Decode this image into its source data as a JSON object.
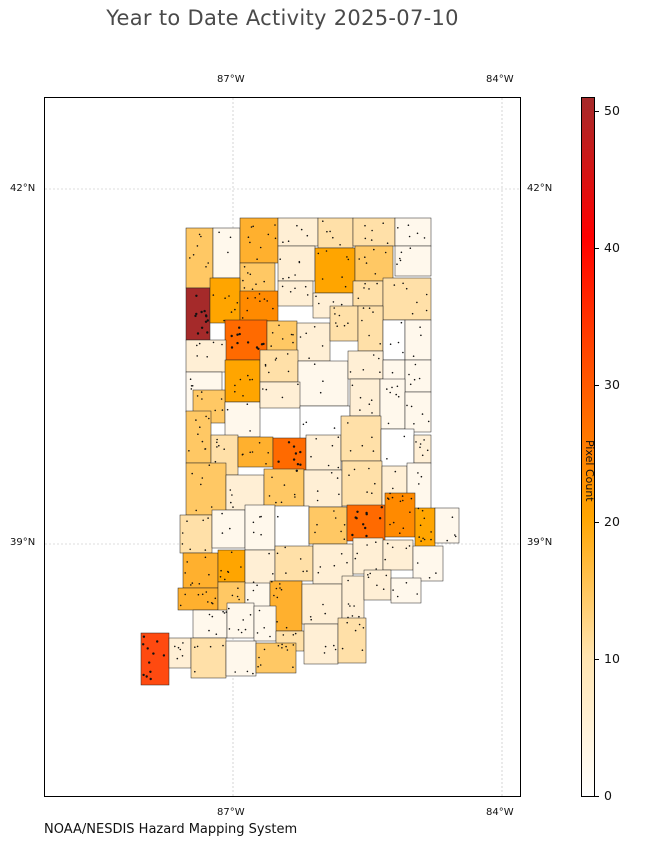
{
  "title": "Year to Date Activity 2025-07-10",
  "footer": "NOAA/NESDIS Hazard Mapping System",
  "axes": {
    "x_ticks": [
      "87°W",
      "84°W"
    ],
    "y_ticks": [
      "42°N",
      "39°N"
    ]
  },
  "colorbar": {
    "label": "Pixel Count",
    "ticks": [
      "0",
      "10",
      "20",
      "30",
      "40",
      "50"
    ],
    "min": 0,
    "max": 51,
    "colors": [
      "#ffffff",
      "#ffe4b0",
      "#ffa500",
      "#ff5500",
      "#ff0000",
      "#a52a2a"
    ]
  },
  "map": {
    "region": "Indiana",
    "projection": "lon/lat",
    "lon_range": [
      -88.6,
      -83.3
    ],
    "lat_range": [
      37.1,
      42.8
    ],
    "grid": true,
    "overlay": "fire detection points"
  }
}
